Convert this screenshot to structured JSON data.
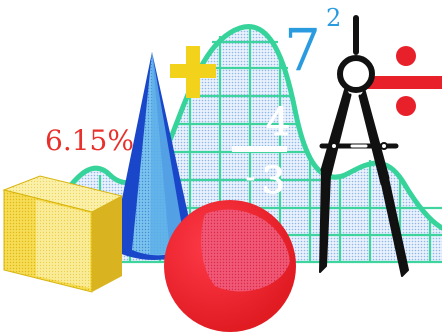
{
  "clipart": {
    "percent_text": "6.15%",
    "seven_base": "7",
    "seven_exponent": "2",
    "graph_numerator": "4",
    "graph_denominator": "3",
    "graph_minus": "-",
    "colors": {
      "percent": "#e8312c",
      "seven": "#2b9be0",
      "plus": "#f3d21c",
      "divide": "#e8202a",
      "graph_line": "#36d39a",
      "graph_fill": "#cfe3f7",
      "cube": "#f1d12a",
      "cone": "#1a47c9",
      "sphere": "#ef2330",
      "compass": "#111111"
    },
    "icons": [
      "plus-icon",
      "divide-icon",
      "cone-icon",
      "cube-icon",
      "sphere-icon",
      "compass-icon",
      "bell-curve-graph"
    ]
  }
}
